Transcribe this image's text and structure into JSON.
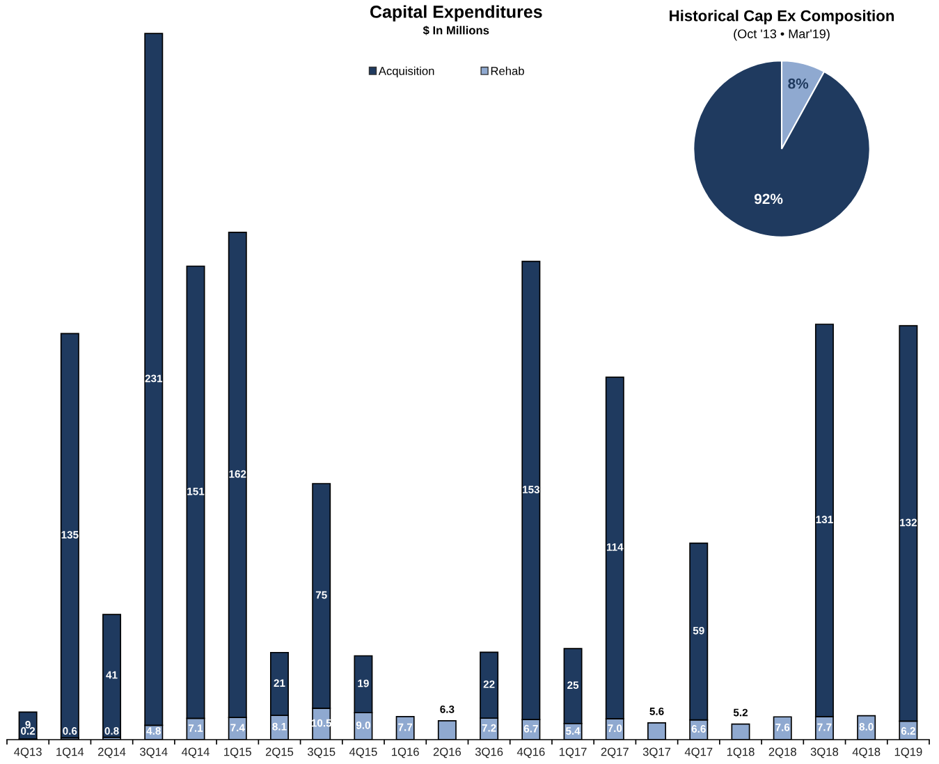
{
  "chart_data": [
    {
      "type": "bar",
      "title": "Capital Expenditures",
      "subtitle": "$ In Millions",
      "stacked": true,
      "data_labels": true,
      "legend": "top",
      "grid": false,
      "categories": [
        "4Q13",
        "1Q14",
        "2Q14",
        "3Q14",
        "4Q14",
        "1Q15",
        "2Q15",
        "3Q15",
        "4Q15",
        "1Q16",
        "2Q16",
        "3Q16",
        "4Q16",
        "1Q17",
        "2Q17",
        "3Q17",
        "4Q17",
        "1Q18",
        "2Q18",
        "3Q18",
        "4Q18",
        "1Q19"
      ],
      "series": [
        {
          "name": "Rehab",
          "color": "#8fa9d0",
          "values": [
            0.2,
            0.6,
            0.8,
            4.8,
            7.1,
            7.4,
            8.1,
            10.5,
            9.0,
            7.7,
            6.3,
            7.2,
            6.7,
            5.4,
            7.0,
            5.6,
            6.6,
            5.2,
            7.6,
            7.7,
            8.0,
            6.2
          ],
          "value_labels": [
            "0.2",
            "0.6",
            "0.8",
            "4.8",
            "7.1",
            "7.4",
            "8.1",
            "10.5",
            "9.0",
            "7.7",
            "6.3",
            "7.2",
            "6.7",
            "5.4",
            "7.0",
            "5.6",
            "6.6",
            "5.2",
            "7.6",
            "7.7",
            "8.0",
            "6.2"
          ]
        },
        {
          "name": "Acquisition",
          "color": "#1f3a5f",
          "values": [
            9,
            135,
            41,
            231,
            151,
            162,
            21,
            75,
            19,
            null,
            null,
            22,
            153,
            25,
            114,
            null,
            59,
            null,
            null,
            131,
            null,
            132
          ]
        }
      ]
    },
    {
      "type": "pie",
      "title": "Historical Cap Ex Composition",
      "subtitle": "(Oct '13 • Mar'19)",
      "categories": [
        null,
        null
      ],
      "values": [
        8,
        92
      ],
      "colors": [
        "#8fa9d0",
        "#1f3a5f"
      ],
      "value_labels": [
        "8%",
        "92%"
      ]
    }
  ]
}
